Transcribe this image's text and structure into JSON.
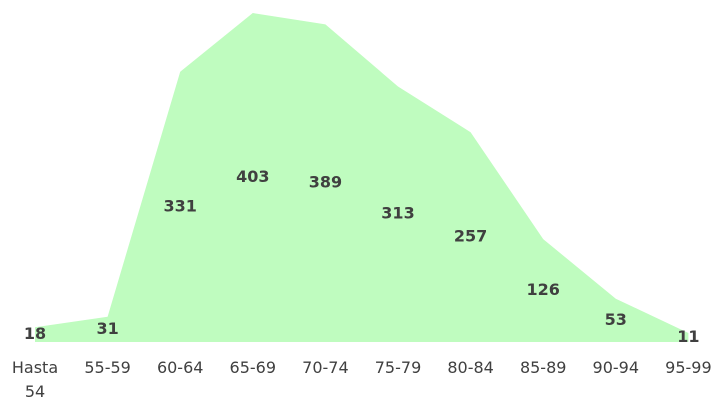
{
  "chart_data": {
    "type": "area",
    "categories": [
      "Hasta 54",
      "55-59",
      "60-64",
      "65-69",
      "70-74",
      "75-79",
      "80-84",
      "85-89",
      "90-94",
      "95-99"
    ],
    "values": [
      18,
      31,
      331,
      403,
      389,
      313,
      257,
      126,
      53,
      11
    ],
    "color": "#bffcbf"
  }
}
